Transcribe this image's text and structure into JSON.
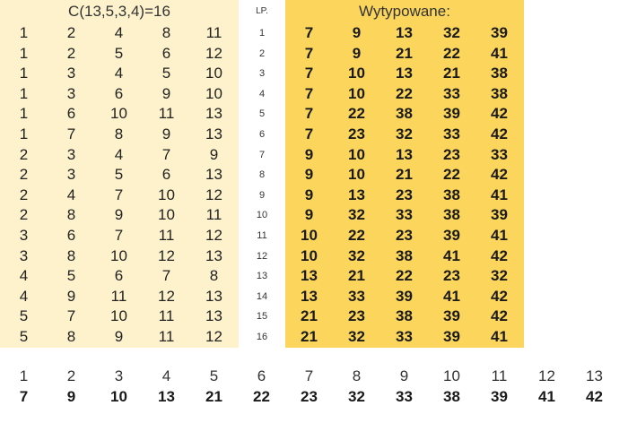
{
  "left": {
    "title": "C(13,5,3,4)=16",
    "rows": [
      [
        1,
        2,
        4,
        8,
        11
      ],
      [
        1,
        2,
        5,
        6,
        12
      ],
      [
        1,
        3,
        4,
        5,
        10
      ],
      [
        1,
        3,
        6,
        9,
        10
      ],
      [
        1,
        6,
        10,
        11,
        13
      ],
      [
        1,
        7,
        8,
        9,
        13
      ],
      [
        2,
        3,
        4,
        7,
        9
      ],
      [
        2,
        3,
        5,
        6,
        13
      ],
      [
        2,
        4,
        7,
        10,
        12
      ],
      [
        2,
        8,
        9,
        10,
        11
      ],
      [
        3,
        6,
        7,
        11,
        12
      ],
      [
        3,
        8,
        10,
        12,
        13
      ],
      [
        4,
        5,
        6,
        7,
        8
      ],
      [
        4,
        9,
        11,
        12,
        13
      ],
      [
        5,
        7,
        10,
        11,
        13
      ],
      [
        5,
        8,
        9,
        11,
        12
      ]
    ]
  },
  "lp": {
    "header": "LP.",
    "numbers": [
      1,
      2,
      3,
      4,
      5,
      6,
      7,
      8,
      9,
      10,
      11,
      12,
      13,
      14,
      15,
      16
    ]
  },
  "right": {
    "title": "Wytypowane:",
    "rows": [
      [
        7,
        9,
        13,
        32,
        39
      ],
      [
        7,
        9,
        21,
        22,
        41
      ],
      [
        7,
        10,
        13,
        21,
        38
      ],
      [
        7,
        10,
        22,
        33,
        38
      ],
      [
        7,
        22,
        38,
        39,
        42
      ],
      [
        7,
        23,
        32,
        33,
        42
      ],
      [
        9,
        10,
        13,
        23,
        33
      ],
      [
        9,
        10,
        21,
        22,
        42
      ],
      [
        9,
        13,
        23,
        38,
        41
      ],
      [
        9,
        32,
        33,
        38,
        39
      ],
      [
        10,
        22,
        23,
        39,
        41
      ],
      [
        10,
        32,
        38,
        41,
        42
      ],
      [
        13,
        21,
        22,
        23,
        32
      ],
      [
        13,
        33,
        39,
        41,
        42
      ],
      [
        21,
        23,
        38,
        39,
        42
      ],
      [
        21,
        32,
        33,
        39,
        41
      ]
    ]
  },
  "mapping": {
    "indices": [
      1,
      2,
      3,
      4,
      5,
      6,
      7,
      8,
      9,
      10,
      11,
      12,
      13
    ],
    "values": [
      7,
      9,
      10,
      13,
      21,
      22,
      23,
      32,
      33,
      38,
      39,
      41,
      42
    ]
  },
  "colors": {
    "left_panel": "#fdf2cc",
    "right_panel": "#fcd65c"
  }
}
